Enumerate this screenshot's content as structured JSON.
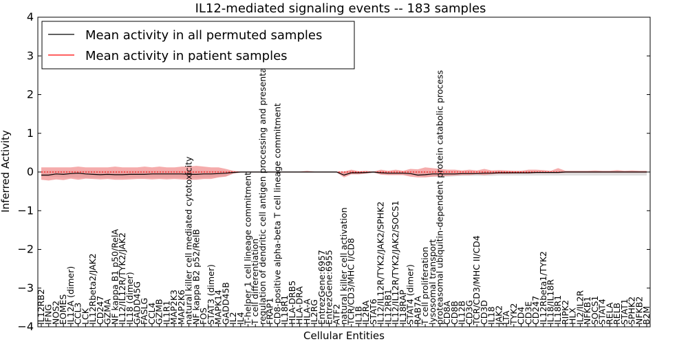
{
  "chart_data": {
    "type": "line",
    "title": "IL12-mediated signaling events -- 183 samples",
    "xlabel": "Cellular Entities",
    "ylabel": "Inferred Activity",
    "ylim": [
      -4,
      4
    ],
    "yticks": [
      "4",
      "3",
      "2",
      "1",
      "0",
      "−1",
      "−2",
      "−3",
      "−4"
    ],
    "ytick_values": [
      4,
      3,
      2,
      1,
      0,
      -1,
      -2,
      -3,
      -4
    ],
    "legend": {
      "placement": "top-left",
      "entries": [
        {
          "label": "Mean activity in all permuted samples",
          "color": "#000000"
        },
        {
          "label": "Mean activity in patient samples",
          "color": "#ff0000"
        }
      ]
    },
    "colors": {
      "permuted_line": "#000000",
      "patient_line": "#ff0000",
      "permuted_band": "#c8c8c8",
      "patient_band": "#f08080"
    },
    "categories": [
      "IL12RB2",
      "IFNG",
      "NOS2",
      "EOMES",
      "IL12A (dimer)",
      "CCL3",
      "LCK",
      "IL12Rbeta2/JAK2",
      "CD247",
      "GZMA",
      "NF kappa B1 p50/RelA",
      "IL12/IL12R/TYK2/JAK2",
      "IL18 (dimer)",
      "GADD45G",
      "FASLG",
      "CCL4",
      "GZMB",
      "IL1R1",
      "MAP2K3",
      "MAP2K6",
      "natural killer cell mediated cytotoxicity",
      "NF kappa B2 p52/RelB",
      "FOS",
      "STAT3 (dimer)",
      "MAPK14",
      "GADD45B",
      "IL2",
      "IL4",
      "T-helper 1 cell lineage commitment",
      "T cell differentiation",
      "regulation of dendritic cell antigen processing and presentation",
      "FRAP1",
      "CD8-positive alpha-beta T cell lineage commitment",
      "IL18R1",
      "HLA-DRB5",
      "HLA-DRA",
      "HLA-A",
      "IL2RG",
      "EntrezGene:6957",
      "EntrezGene:6955",
      "ATF2",
      "natural killer cell activation",
      "TCR/CD3/MHC I/CD8",
      "IL1B",
      "IL2RA",
      "STAT6",
      "IL12/IL12R/TYK2/JAK2/SPHK2",
      "IL12RB1",
      "IL12/IL12R/TYK2/JAK2/SOCS1",
      "IL18RAP",
      "STAT4 (dimer)",
      "RAB7A",
      "T cell proliferation",
      "lysosomal transport",
      "proteasomal ubiquitin-dependent protein catabolic process",
      "CD8A",
      "CD8B",
      "IL12B",
      "CD3G",
      "TCR/CD3/MHC II/CD4",
      "CD3D",
      "IL18",
      "JAK2",
      "LTA",
      "TYK2",
      "CD4",
      "CD3E",
      "CD247",
      "IL12Rbeta1/TYK2",
      "IL18/IL18R",
      "IL18R1",
      "RIPK2",
      "HLX",
      "IL2/IL2R",
      "NFKB1",
      "SOCS1",
      "STAT4",
      "RELA",
      "RELB",
      "STAT1",
      "SPHK2",
      "NFKB2",
      "B2M"
    ],
    "patient_mean": [
      -0.08,
      -0.08,
      -0.05,
      -0.06,
      -0.04,
      -0.03,
      -0.05,
      -0.06,
      -0.07,
      -0.06,
      -0.07,
      -0.07,
      -0.06,
      -0.06,
      -0.06,
      -0.05,
      -0.05,
      -0.05,
      -0.05,
      -0.05,
      -0.06,
      -0.06,
      -0.05,
      -0.05,
      -0.04,
      -0.03,
      -0.01,
      0.0,
      0.0,
      0.0,
      0.0,
      0.0,
      0.0,
      0.0,
      0.0,
      0.0,
      0.0,
      0.0,
      0.0,
      0.0,
      0.0,
      -0.08,
      -0.02,
      -0.02,
      -0.01,
      0.0,
      -0.02,
      -0.03,
      -0.03,
      -0.03,
      -0.04,
      -0.08,
      -0.07,
      -0.05,
      -0.05,
      -0.05,
      -0.05,
      -0.04,
      -0.04,
      -0.04,
      -0.03,
      -0.03,
      -0.02,
      -0.02,
      -0.02,
      -0.02,
      -0.02,
      -0.01,
      -0.01,
      -0.01,
      -0.01,
      0.0,
      0.0,
      0.0,
      0.0,
      0.0,
      0.0,
      0.0,
      0.0,
      0.0,
      0.0,
      0.0,
      0.0
    ],
    "patient_upper": [
      0.12,
      0.12,
      0.12,
      0.12,
      0.12,
      0.14,
      0.12,
      0.12,
      0.12,
      0.12,
      0.14,
      0.12,
      0.12,
      0.12,
      0.14,
      0.12,
      0.14,
      0.12,
      0.12,
      0.14,
      0.14,
      0.16,
      0.14,
      0.12,
      0.12,
      0.08,
      0.03,
      0.01,
      0.01,
      0.01,
      0.01,
      0.01,
      0.01,
      0.01,
      0.01,
      0.01,
      0.03,
      0.01,
      0.01,
      0.01,
      0.01,
      0.01,
      0.06,
      0.02,
      0.03,
      0.01,
      0.06,
      0.03,
      0.06,
      0.03,
      0.08,
      0.07,
      0.12,
      0.1,
      0.08,
      0.06,
      0.06,
      0.04,
      0.06,
      0.04,
      0.08,
      0.04,
      0.05,
      0.04,
      0.03,
      0.03,
      0.06,
      0.06,
      0.05,
      0.03,
      0.1,
      0.03,
      0.03,
      0.03,
      0.03,
      0.04,
      0.03,
      0.03,
      0.05,
      0.03,
      0.04,
      0.03,
      0.03
    ],
    "patient_lower": [
      -0.2,
      -0.22,
      -0.19,
      -0.21,
      -0.17,
      -0.2,
      -0.17,
      -0.18,
      -0.19,
      -0.18,
      -0.2,
      -0.2,
      -0.19,
      -0.18,
      -0.18,
      -0.19,
      -0.18,
      -0.19,
      -0.18,
      -0.19,
      -0.2,
      -0.2,
      -0.18,
      -0.18,
      -0.14,
      -0.12,
      -0.04,
      -0.01,
      -0.01,
      -0.01,
      -0.01,
      -0.01,
      -0.01,
      -0.01,
      -0.01,
      -0.01,
      -0.01,
      -0.01,
      -0.01,
      -0.01,
      -0.01,
      -0.14,
      -0.06,
      -0.06,
      -0.04,
      -0.01,
      -0.07,
      -0.08,
      -0.08,
      -0.08,
      -0.12,
      -0.14,
      -0.14,
      -0.12,
      -0.11,
      -0.1,
      -0.09,
      -0.08,
      -0.08,
      -0.06,
      -0.08,
      -0.06,
      -0.05,
      -0.05,
      -0.04,
      -0.04,
      -0.04,
      -0.03,
      -0.03,
      -0.03,
      -0.03,
      -0.02,
      -0.02,
      -0.02,
      -0.02,
      -0.02,
      -0.02,
      -0.02,
      -0.02,
      -0.02,
      -0.02,
      -0.02,
      -0.02
    ],
    "permuted_mean": [
      0.0,
      0.0,
      0.0,
      0.0,
      0.0,
      0.0,
      0.0,
      0.0,
      0.0,
      0.0,
      0.0,
      0.0,
      0.0,
      0.0,
      0.0,
      0.0,
      0.0,
      0.0,
      0.0,
      0.0,
      0.0,
      0.0,
      0.0,
      0.0,
      0.0,
      0.0,
      0.0,
      0.0,
      0.0,
      0.0,
      0.0,
      0.0,
      0.0,
      0.0,
      0.0,
      0.0,
      0.0,
      0.0,
      0.0,
      0.0,
      0.0,
      0.0,
      0.0,
      0.0,
      0.0,
      0.0,
      0.0,
      0.0,
      0.0,
      0.0,
      0.0,
      0.0,
      0.0,
      0.0,
      0.0,
      0.0,
      0.0,
      0.0,
      0.0,
      0.0,
      0.0,
      0.0,
      0.0,
      0.0,
      0.0,
      0.0,
      0.0,
      0.0,
      0.0,
      0.0,
      0.0,
      0.0,
      0.0,
      0.0,
      0.0,
      0.0,
      0.0,
      0.0,
      0.0,
      0.0,
      0.0,
      0.0,
      0.0
    ],
    "permuted_upper": [
      0.03,
      0.03,
      0.03,
      0.03,
      0.03,
      0.03,
      0.03,
      0.03,
      0.03,
      0.03,
      0.03,
      0.03,
      0.03,
      0.03,
      0.03,
      0.03,
      0.03,
      0.03,
      0.03,
      0.03,
      0.03,
      0.03,
      0.03,
      0.03,
      0.03,
      0.03,
      0.02,
      0.01,
      0.01,
      0.01,
      0.01,
      0.01,
      0.01,
      0.01,
      0.01,
      0.01,
      0.01,
      0.01,
      0.01,
      0.01,
      0.01,
      0.02,
      0.02,
      0.02,
      0.02,
      0.01,
      0.02,
      0.02,
      0.02,
      0.02,
      0.02,
      0.02,
      0.02,
      0.02,
      0.02,
      0.02,
      0.02,
      0.02,
      0.02,
      0.02,
      0.02,
      0.02,
      0.02,
      0.02,
      0.02,
      0.02,
      0.02,
      0.02,
      0.02,
      0.02,
      0.02,
      0.02,
      0.02,
      0.02,
      0.02,
      0.02,
      0.02,
      0.02,
      0.02,
      0.02,
      0.02,
      0.02,
      0.02
    ],
    "permuted_lower": [
      -0.12,
      -0.13,
      -0.13,
      -0.14,
      -0.14,
      -0.15,
      -0.15,
      -0.15,
      -0.15,
      -0.15,
      -0.15,
      -0.15,
      -0.15,
      -0.15,
      -0.15,
      -0.15,
      -0.15,
      -0.15,
      -0.15,
      -0.15,
      -0.15,
      -0.15,
      -0.15,
      -0.14,
      -0.13,
      -0.11,
      -0.05,
      -0.02,
      -0.02,
      -0.02,
      -0.02,
      -0.02,
      -0.02,
      -0.02,
      -0.02,
      -0.02,
      -0.02,
      -0.02,
      -0.02,
      -0.02,
      -0.02,
      -0.06,
      -0.06,
      -0.06,
      -0.05,
      -0.03,
      -0.06,
      -0.07,
      -0.07,
      -0.07,
      -0.08,
      -0.1,
      -0.12,
      -0.12,
      -0.12,
      -0.12,
      -0.11,
      -0.1,
      -0.1,
      -0.1,
      -0.1,
      -0.1,
      -0.09,
      -0.09,
      -0.09,
      -0.09,
      -0.09,
      -0.09,
      -0.09,
      -0.09,
      -0.09,
      -0.09,
      -0.09,
      -0.09,
      -0.09,
      -0.09,
      -0.09,
      -0.09,
      -0.09,
      -0.09,
      -0.09,
      -0.09,
      -0.09
    ]
  }
}
